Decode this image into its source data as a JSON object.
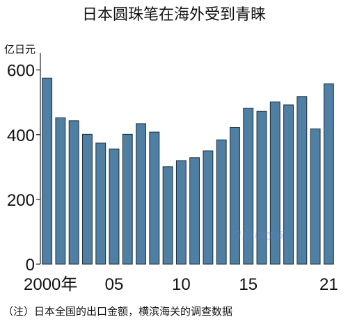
{
  "chart_data": {
    "type": "bar",
    "title": "日本圆珠笔在海外受到青睐",
    "unit_label": "亿日元",
    "x": [
      2000,
      2001,
      2002,
      2003,
      2004,
      2005,
      2006,
      2007,
      2008,
      2009,
      2010,
      2011,
      2012,
      2013,
      2014,
      2015,
      2016,
      2017,
      2018,
      2019,
      2020,
      2021
    ],
    "values": [
      575,
      452,
      443,
      401,
      374,
      356,
      401,
      434,
      408,
      301,
      320,
      329,
      350,
      384,
      422,
      482,
      472,
      501,
      492,
      518,
      418,
      557
    ],
    "ylim": [
      0,
      640
    ],
    "yticks": [
      0,
      200,
      400,
      600
    ],
    "xtick_labels": [
      {
        "year": 2000,
        "label": "2000年"
      },
      {
        "year": 2005,
        "label": "05"
      },
      {
        "year": 2010,
        "label": "10"
      },
      {
        "year": 2015,
        "label": "15"
      },
      {
        "year": 2021,
        "label": "21"
      }
    ],
    "grid": false,
    "bar_color": "#4f7fa3"
  },
  "watermark": "日经中文网",
  "note": "（注）日本全国的出口金额，横滨海关的调查数据"
}
